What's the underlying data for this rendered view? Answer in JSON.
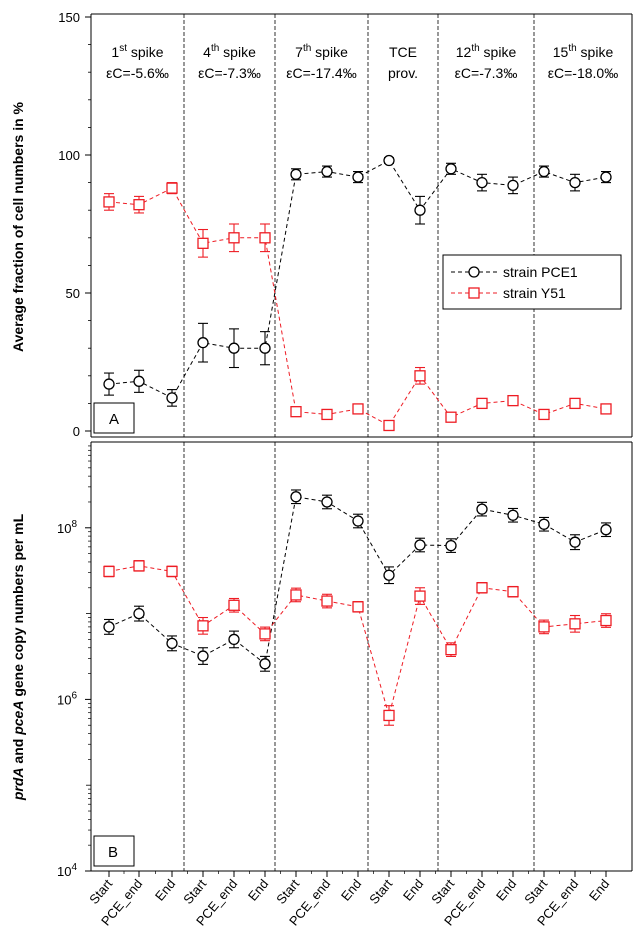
{
  "chart_data": [
    {
      "type": "line",
      "panel_label": "A",
      "ylabel": "Average fraction of cell numbers in %",
      "ylim": [
        0,
        150
      ],
      "yticks": [
        0,
        50,
        100,
        150
      ],
      "categories": [
        "Start",
        "PCE_end",
        "End",
        "Start",
        "PCE_end",
        "End",
        "Start",
        "PCE_end",
        "End",
        "Start",
        "End",
        "Start",
        "PCE_end",
        "End",
        "Start",
        "PCE_end",
        "End"
      ],
      "phases": [
        {
          "title": "1",
          "sup": "st",
          "word": " spike",
          "line2": "εC=-5.6‰"
        },
        {
          "title": "4",
          "sup": "th",
          "word": " spike",
          "line2": "εC=-7.3‰"
        },
        {
          "title": "7",
          "sup": "th",
          "word": " spike",
          "line2": "εC=-17.4‰"
        },
        {
          "title": "TCE",
          "sup": "",
          "word": "",
          "line2": "prov."
        },
        {
          "title": "12",
          "sup": "th",
          "word": " spike",
          "line2": "εC=-7.3‰"
        },
        {
          "title": "15",
          "sup": "th",
          "word": " spike",
          "line2": "εC=-18.0‰"
        }
      ],
      "legend": {
        "placement": "right",
        "entries": [
          "strain PCE1",
          "strain Y51"
        ]
      },
      "series": [
        {
          "name": "strain PCE1",
          "color": "#000000",
          "marker": "circle",
          "values": [
            17,
            18,
            12,
            32,
            30,
            30,
            93,
            94,
            92,
            98,
            80,
            95,
            90,
            89,
            94,
            90,
            92
          ],
          "err": [
            4,
            4,
            3,
            7,
            7,
            6,
            2,
            2,
            2,
            1,
            5,
            2,
            3,
            3,
            2,
            3,
            2
          ]
        },
        {
          "name": "strain Y51",
          "color": "#ee1c24",
          "marker": "square",
          "values": [
            83,
            82,
            88,
            68,
            70,
            70,
            7,
            6,
            8,
            2,
            20,
            5,
            10,
            11,
            6,
            10,
            8
          ],
          "err": [
            3,
            3,
            2,
            5,
            5,
            5,
            1,
            1,
            1,
            1,
            3,
            1,
            1,
            1,
            1,
            1,
            1
          ]
        }
      ]
    },
    {
      "type": "line",
      "panel_label": "B",
      "ylabel_parts": [
        {
          "text": "prdA",
          "italic": true
        },
        {
          "text": " and ",
          "italic": false
        },
        {
          "text": "pceA",
          "italic": true
        },
        {
          "text": " gene copy numbers per mL",
          "italic": false
        }
      ],
      "yscale": "log",
      "ylim": [
        10000,
        1000000000
      ],
      "yticks": [
        {
          "value": 10000,
          "base": "10",
          "exp": "4"
        },
        {
          "value": 1000000,
          "base": "10",
          "exp": "6"
        },
        {
          "value": 100000000,
          "base": "10",
          "exp": "8"
        }
      ],
      "series": [
        {
          "name": "strain PCE1",
          "color": "#000000",
          "marker": "circle",
          "values": [
            7000000.0,
            10000000.0,
            4500000.0,
            3200000.0,
            5000000.0,
            2600000.0,
            230000000.0,
            200000000.0,
            120000000.0,
            28000000.0,
            63000000.0,
            62000000.0,
            165000000.0,
            140000000.0,
            110000000.0,
            68000000.0,
            95000000.0
          ],
          "errf": [
            1.22,
            1.22,
            1.22,
            1.25,
            1.25,
            1.22,
            1.2,
            1.2,
            1.2,
            1.25,
            1.2,
            1.2,
            1.2,
            1.2,
            1.2,
            1.22,
            1.2
          ]
        },
        {
          "name": "strain Y51",
          "color": "#ee1c24",
          "marker": "square",
          "values": [
            31000000.0,
            36000000.0,
            31000000.0,
            7200000.0,
            12500000.0,
            5800000.0,
            16500000.0,
            14000000.0,
            12000000.0,
            650000.0,
            16000000.0,
            3800000.0,
            20000000.0,
            18000000.0,
            7000000.0,
            7600000.0,
            8300000.0
          ],
          "errf": [
            1.15,
            1.15,
            1.15,
            1.25,
            1.2,
            1.2,
            1.2,
            1.2,
            1.15,
            1.3,
            1.25,
            1.2,
            1.15,
            1.15,
            1.2,
            1.25,
            1.2
          ]
        }
      ]
    }
  ]
}
